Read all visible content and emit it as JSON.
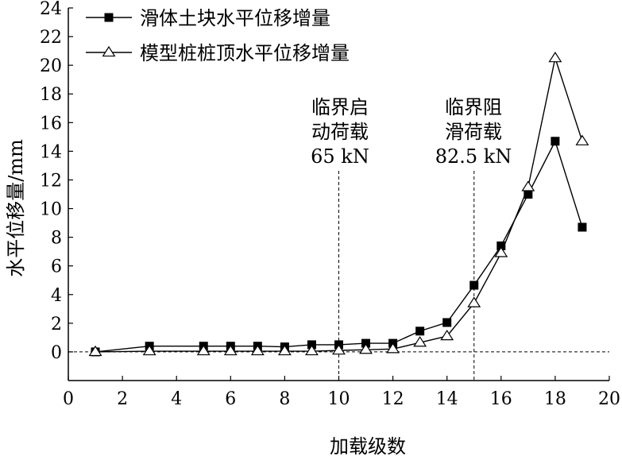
{
  "chart_data": {
    "type": "line",
    "xlabel": "加载级数",
    "ylabel": "水平位移量/mm",
    "xlim": [
      0,
      20
    ],
    "ylim": [
      -2,
      24
    ],
    "xticks": [
      0,
      2,
      4,
      6,
      8,
      10,
      12,
      14,
      16,
      18,
      20
    ],
    "yticks": [
      0,
      2,
      4,
      6,
      8,
      10,
      12,
      14,
      16,
      18,
      20,
      22,
      24
    ],
    "grid": false,
    "legend_position": "top-left",
    "series": [
      {
        "name": "滑体土块水平位移增量",
        "marker": "filled-square",
        "x": [
          1,
          3,
          5,
          6,
          7,
          8,
          9,
          10,
          11,
          12,
          13,
          14,
          15,
          16,
          17,
          18,
          19
        ],
        "y": [
          0.0,
          0.4,
          0.4,
          0.4,
          0.4,
          0.35,
          0.5,
          0.5,
          0.6,
          0.6,
          1.45,
          2.05,
          4.65,
          7.4,
          11.0,
          14.7,
          8.7
        ]
      },
      {
        "name": "模型桩桩顶水平位移增量",
        "marker": "open-triangle",
        "x": [
          1,
          3,
          5,
          6,
          7,
          8,
          9,
          10,
          11,
          12,
          13,
          14,
          15,
          16,
          17,
          18,
          19
        ],
        "y": [
          0.0,
          0.05,
          0.05,
          0.05,
          0.05,
          0.05,
          0.05,
          0.1,
          0.15,
          0.2,
          0.65,
          1.1,
          3.4,
          6.9,
          11.5,
          20.5,
          14.7
        ]
      }
    ],
    "reference_lines": [
      {
        "orientation": "vertical",
        "x": 10,
        "style": "dashed"
      },
      {
        "orientation": "vertical",
        "x": 15,
        "style": "dashed"
      },
      {
        "orientation": "horizontal",
        "y": 0,
        "style": "dashed"
      }
    ],
    "annotations": [
      {
        "lines": [
          "临界启",
          "动荷载",
          "65 kN"
        ],
        "x": 10
      },
      {
        "lines": [
          "临界阻",
          "滑荷载",
          "82.5 kN"
        ],
        "x": 15
      }
    ]
  }
}
